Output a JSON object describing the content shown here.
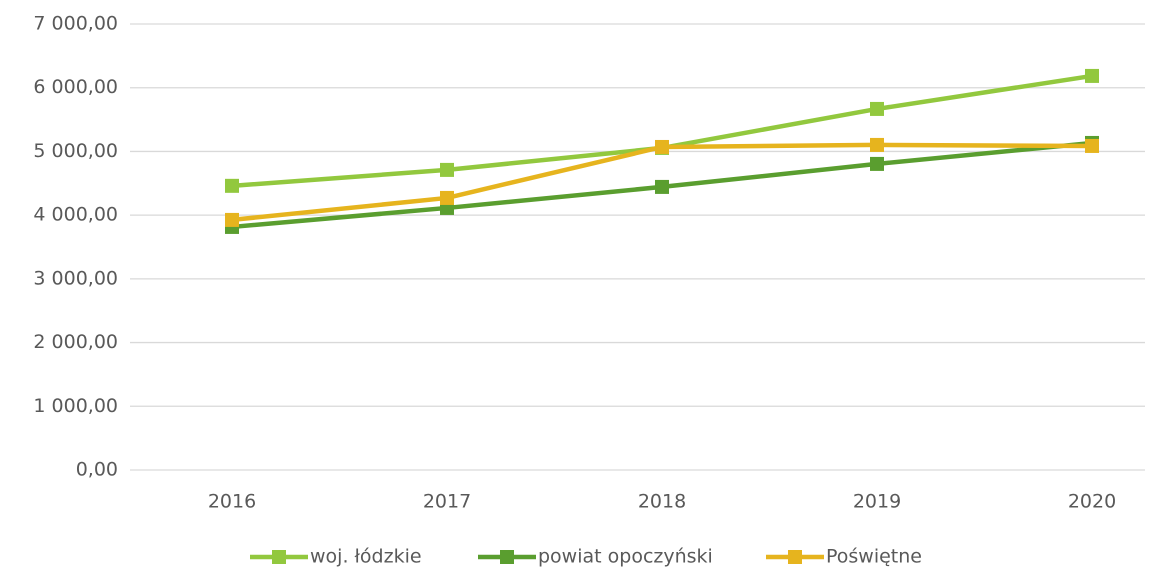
{
  "chart_data": {
    "type": "line",
    "categories": [
      "2016",
      "2017",
      "2018",
      "2019",
      "2020"
    ],
    "series": [
      {
        "name": "woj. łódzkie",
        "color": "#92c83e",
        "values": [
          4460,
          4710,
          5055,
          5667,
          6185
        ]
      },
      {
        "name": "powiat opoczyński",
        "color": "#5a9e2f",
        "values": [
          3815,
          4113,
          4443,
          4804,
          5133
        ]
      },
      {
        "name": "Poświętne",
        "color": "#e6b41e",
        "values": [
          3925,
          4270,
          5070,
          5102,
          5086
        ]
      }
    ],
    "ylim": [
      0,
      7000
    ],
    "yticks": [
      {
        "value": 0,
        "label": "0,00"
      },
      {
        "value": 1000,
        "label": "1 000,00"
      },
      {
        "value": 2000,
        "label": "2 000,00"
      },
      {
        "value": 3000,
        "label": "3 000,00"
      },
      {
        "value": 4000,
        "label": "4 000,00"
      },
      {
        "value": 5000,
        "label": "5 000,00"
      },
      {
        "value": 6000,
        "label": "6 000,00"
      },
      {
        "value": 7000,
        "label": "7 000,00"
      }
    ],
    "grid": true,
    "legend": "bottom"
  }
}
